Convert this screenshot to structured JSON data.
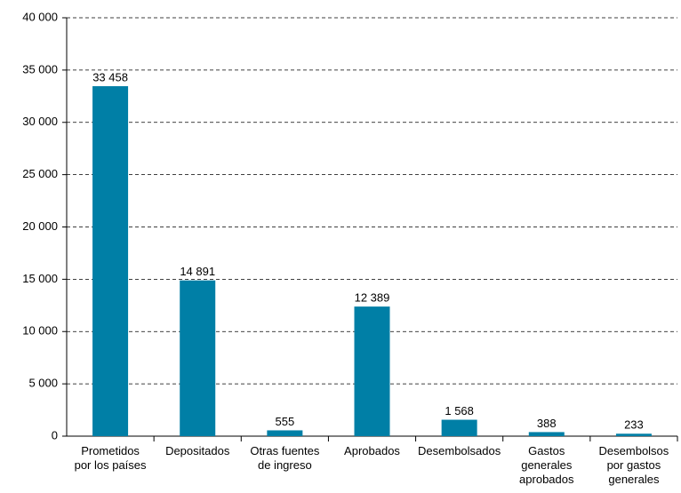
{
  "chart_data": {
    "type": "bar",
    "categories": [
      "Prometidos\npor los países",
      "Depositados",
      "Otras fuentes\nde ingreso",
      "Aprobados",
      "Desembolsados",
      "Gastos\ngenerales\naprobados",
      "Desembolsos\npor gastos\ngenerales"
    ],
    "values": [
      33458,
      14891,
      555,
      12389,
      1568,
      388,
      233
    ],
    "value_labels": [
      "33 458",
      "14 891",
      "555",
      "12 389",
      "1 568",
      "388",
      "233"
    ],
    "color": "#007fa6",
    "ylim": [
      0,
      40000
    ],
    "yticks": [
      0,
      {
        "value": 5000,
        "label": "5 000"
      },
      {
        "value": 10000,
        "label": "10 000"
      },
      {
        "value": 15000,
        "label": "15 000"
      },
      {
        "value": 20000,
        "label": "20 000"
      },
      {
        "value": 25000,
        "label": "25 000"
      },
      {
        "value": 30000,
        "label": "30 000"
      },
      {
        "value": 35000,
        "label": "35 000"
      },
      {
        "value": 40000,
        "label": "40 000"
      }
    ],
    "grid": true
  }
}
